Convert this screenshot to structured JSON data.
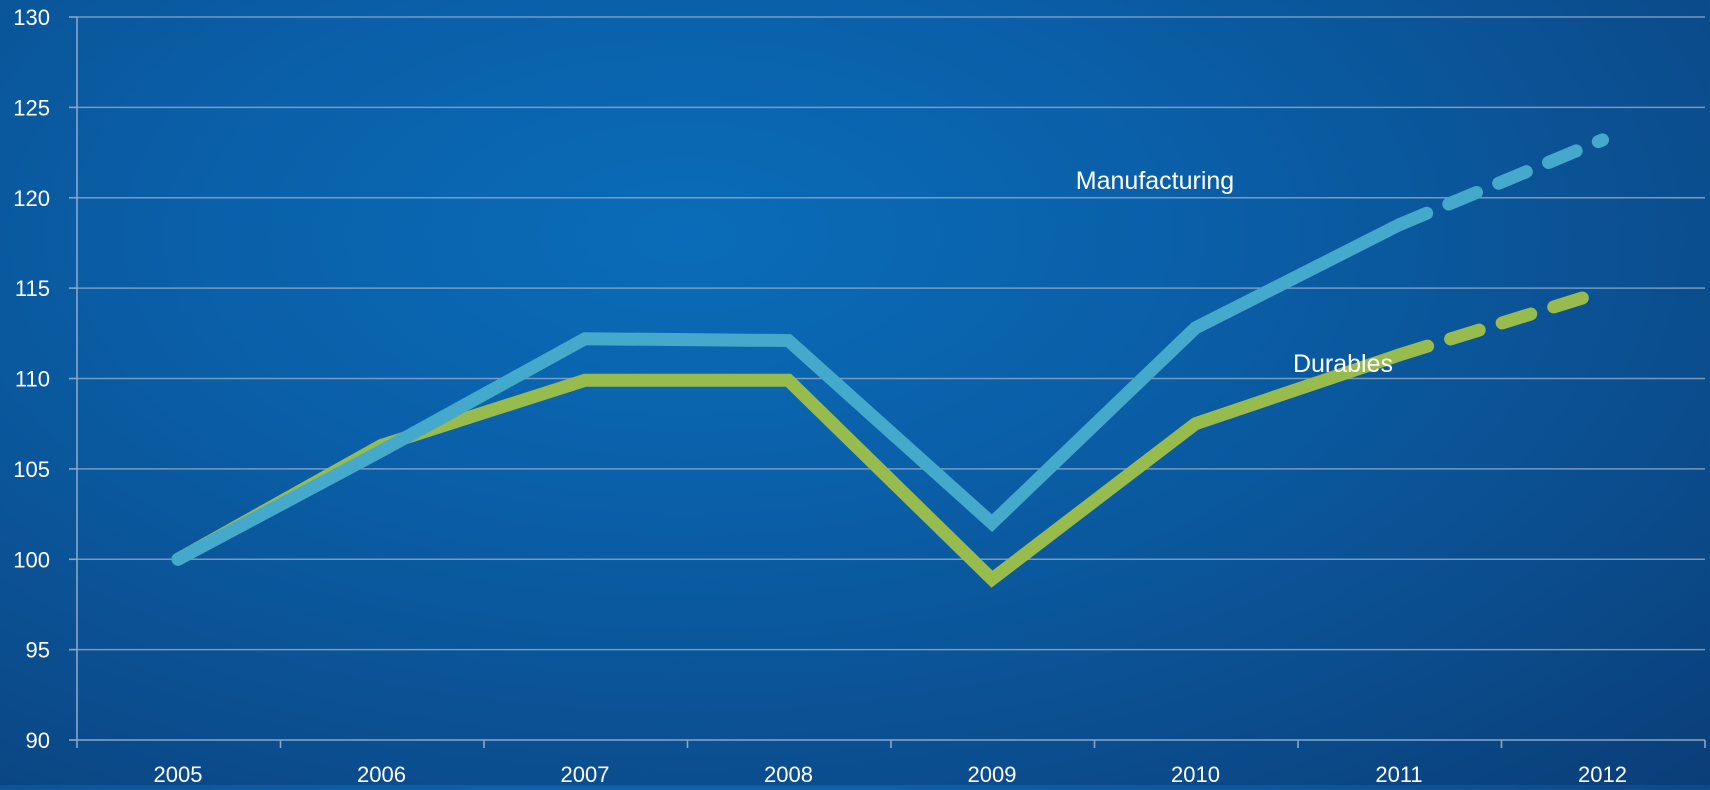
{
  "chart_data": {
    "type": "line",
    "title": "",
    "xlabel": "",
    "ylabel": "",
    "x": [
      "2005",
      "2006",
      "2007",
      "2008",
      "2009",
      "2010",
      "2011",
      "2012"
    ],
    "ylim": [
      90,
      130
    ],
    "yticks": [
      "90",
      "95",
      "100",
      "105",
      "110",
      "115",
      "120",
      "125",
      "130"
    ],
    "grid": true,
    "legend": "none",
    "series": [
      {
        "name": "Manufacturing",
        "color": "#45a9cc",
        "values": [
          100,
          106,
          112.2,
          112.1,
          102,
          112.8,
          118.5,
          123.2
        ],
        "dashed_from_index": 6
      },
      {
        "name": "Durables",
        "color": "#97bc4d",
        "values": [
          100,
          106.3,
          109.9,
          109.9,
          98.9,
          107.5,
          111.3,
          114.8
        ],
        "dashed_from_index": 6
      }
    ]
  }
}
